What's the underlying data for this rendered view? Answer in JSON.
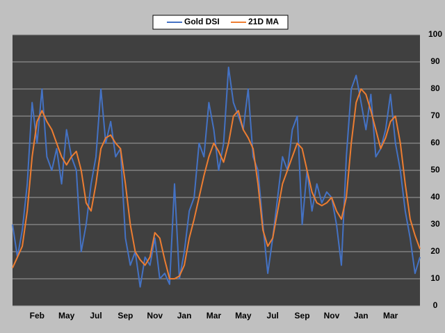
{
  "chart_data": {
    "type": "line",
    "categories": [
      null,
      null,
      null,
      null,
      null,
      "Feb",
      null,
      null,
      null,
      null,
      null,
      "May",
      null,
      null,
      null,
      null,
      null,
      "Jul",
      null,
      null,
      null,
      null,
      null,
      "Sep",
      null,
      null,
      null,
      null,
      null,
      "Nov",
      null,
      null,
      null,
      null,
      null,
      "Jan",
      null,
      null,
      null,
      null,
      null,
      "Mar",
      null,
      null,
      null,
      null,
      null,
      "May",
      null,
      null,
      null,
      null,
      null,
      "Jul",
      null,
      null,
      null,
      null,
      null,
      "Sep",
      null,
      null,
      null,
      null,
      null,
      "Nov",
      null,
      null,
      null,
      null,
      null,
      "Jan",
      null,
      null,
      null,
      null,
      null,
      "Mar",
      null,
      null,
      null,
      null,
      null,
      null
    ],
    "series": [
      {
        "name": "Gold DSI",
        "color": "#4472c4",
        "values": [
          30,
          18,
          28,
          45,
          75,
          60,
          80,
          55,
          50,
          58,
          45,
          65,
          55,
          50,
          20,
          30,
          45,
          55,
          80,
          60,
          68,
          55,
          58,
          25,
          15,
          20,
          7,
          18,
          15,
          25,
          10,
          12,
          8,
          45,
          10,
          20,
          35,
          40,
          60,
          55,
          75,
          65,
          50,
          60,
          88,
          75,
          70,
          65,
          80,
          55,
          50,
          30,
          12,
          25,
          40,
          55,
          50,
          65,
          70,
          30,
          50,
          35,
          45,
          38,
          42,
          40,
          30,
          15,
          55,
          80,
          85,
          75,
          65,
          78,
          55,
          58,
          65,
          78,
          60,
          50,
          35,
          25,
          12,
          18
        ]
      },
      {
        "name": "21D MA",
        "color": "#ed7d31",
        "values": [
          14,
          18,
          22,
          35,
          55,
          68,
          72,
          68,
          65,
          60,
          55,
          52,
          55,
          57,
          50,
          38,
          35,
          45,
          58,
          62,
          63,
          60,
          58,
          45,
          30,
          20,
          17,
          15,
          18,
          27,
          25,
          17,
          10,
          10,
          11,
          15,
          25,
          32,
          40,
          48,
          55,
          60,
          57,
          53,
          60,
          70,
          72,
          65,
          62,
          58,
          45,
          28,
          22,
          25,
          35,
          45,
          50,
          55,
          60,
          58,
          50,
          42,
          38,
          37,
          38,
          40,
          35,
          32,
          40,
          60,
          75,
          80,
          78,
          72,
          65,
          58,
          62,
          68,
          70,
          60,
          45,
          32,
          26,
          21
        ]
      }
    ],
    "ylim": [
      0,
      100
    ],
    "yticks": [
      0,
      10,
      20,
      30,
      40,
      50,
      60,
      70,
      80,
      90,
      100
    ],
    "grid": true,
    "legend": "top"
  }
}
